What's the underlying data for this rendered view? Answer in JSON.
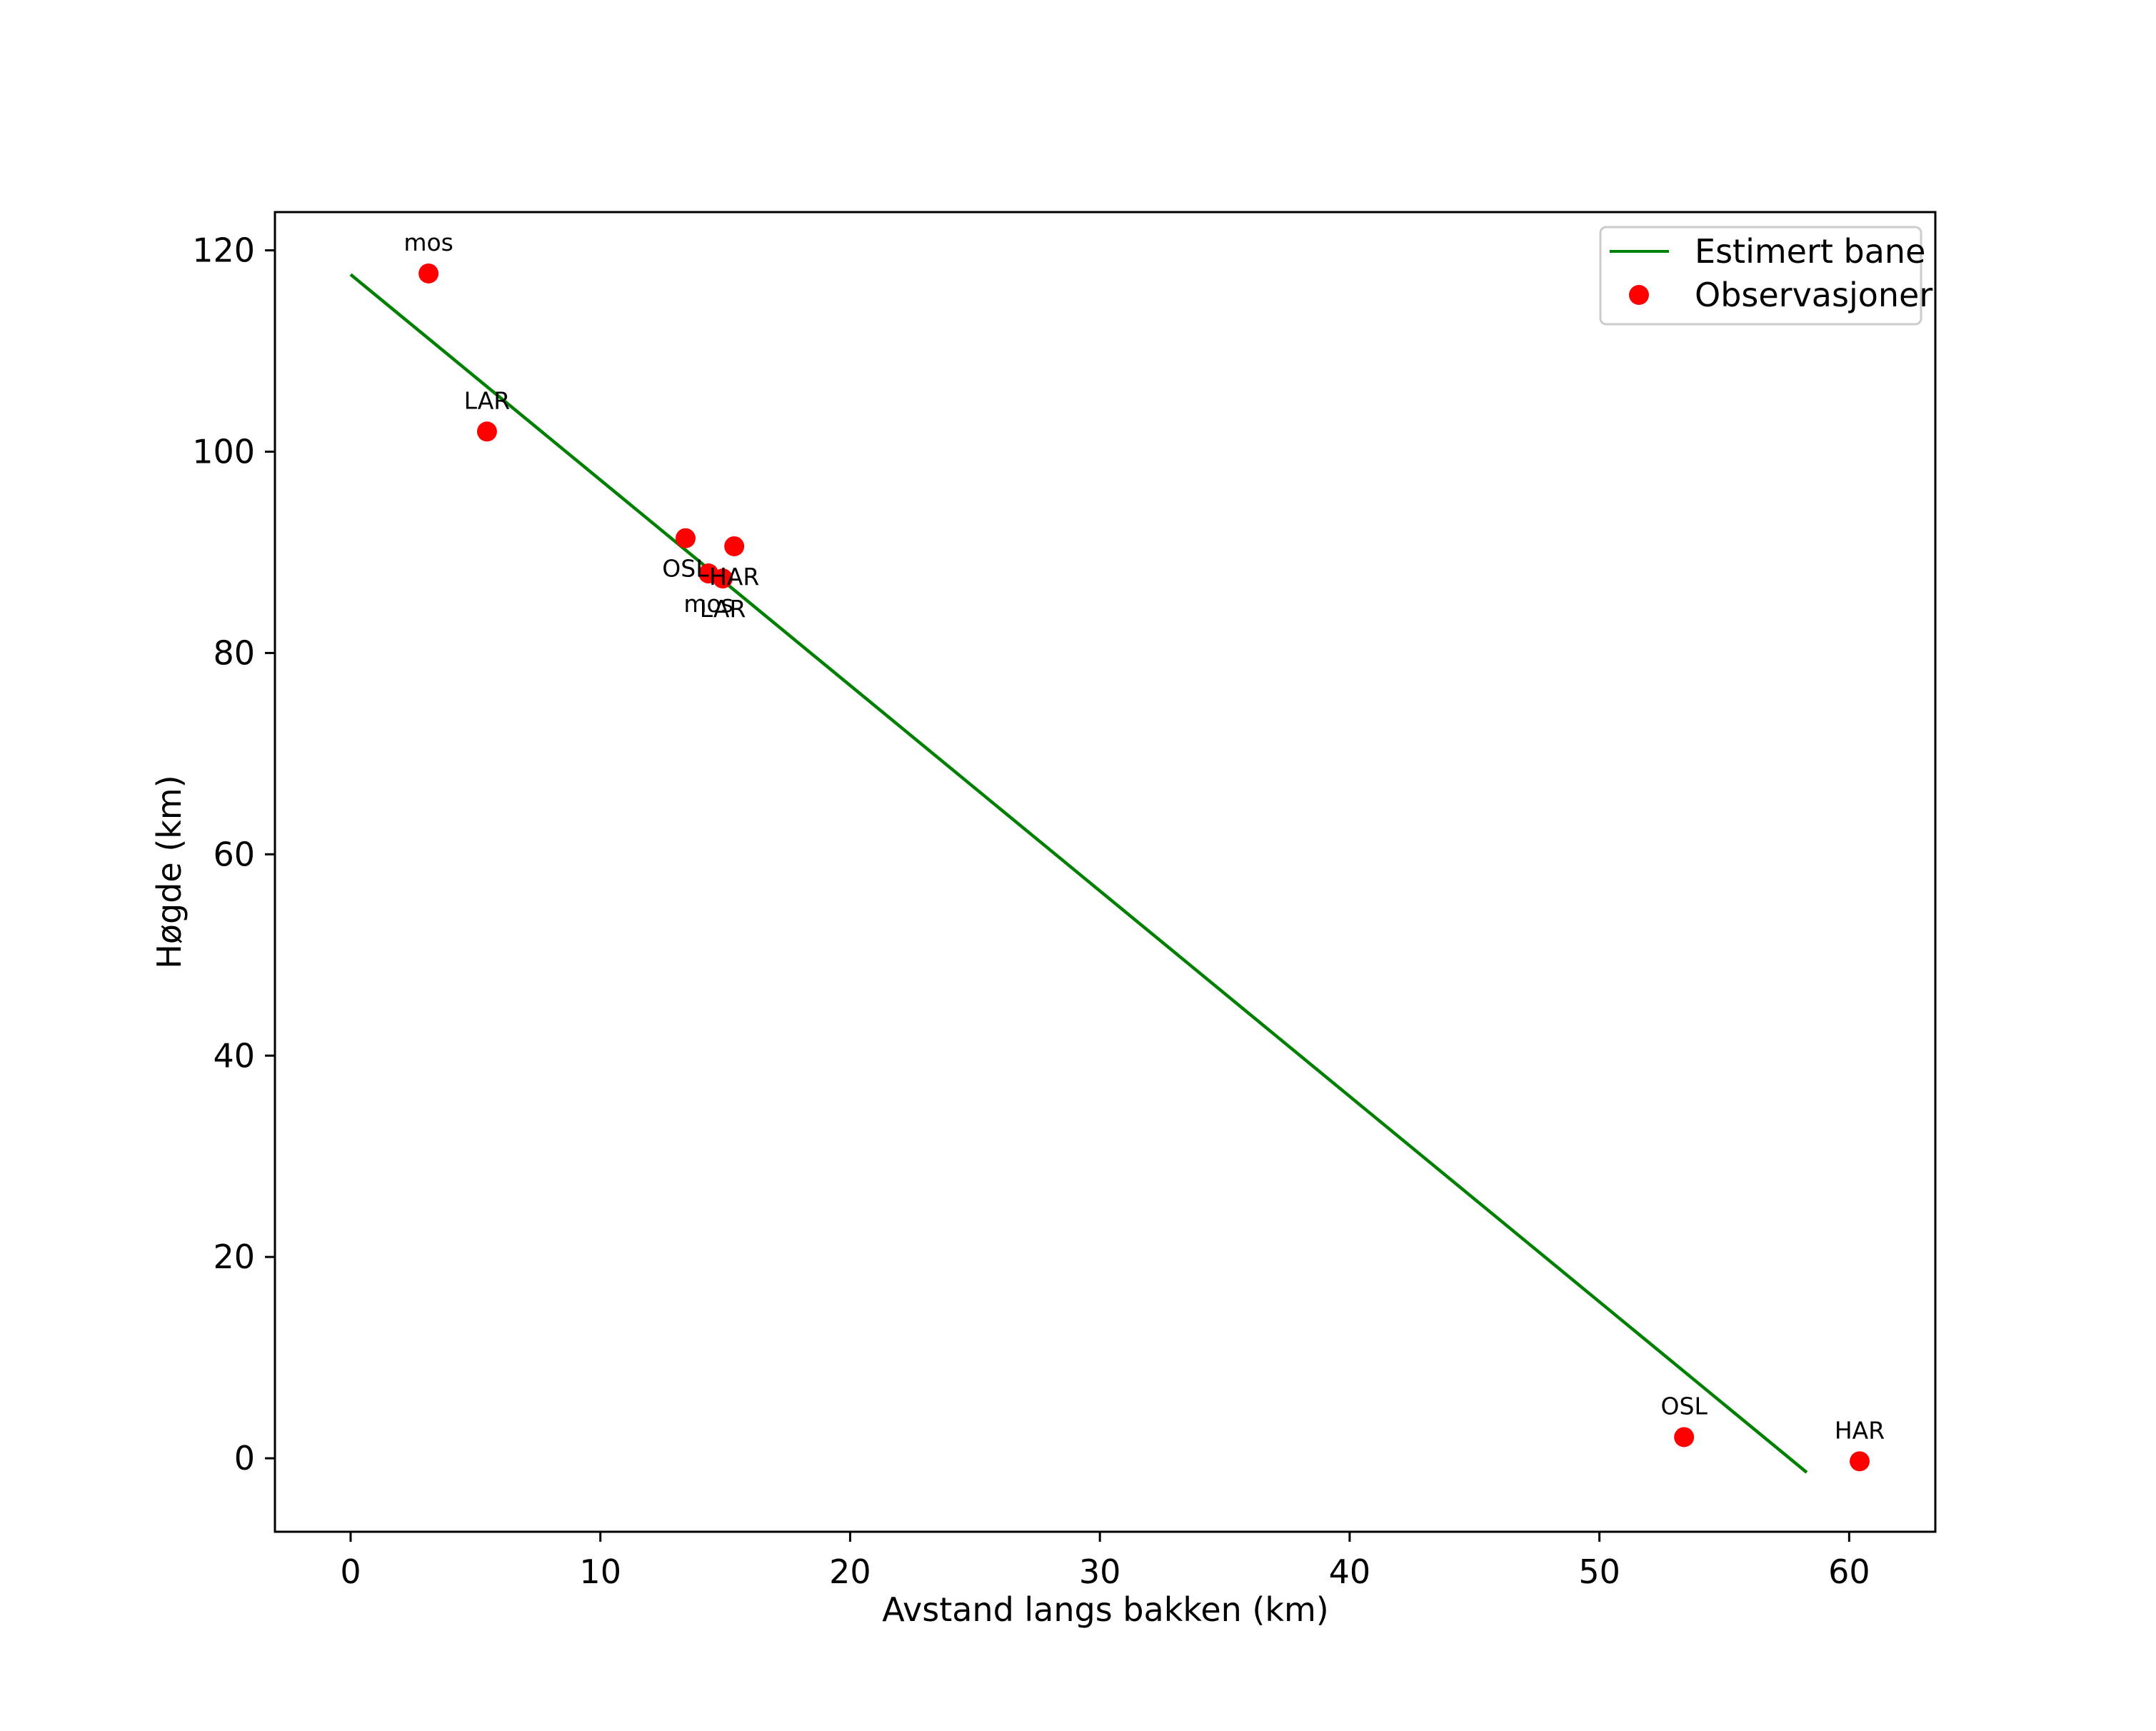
{
  "chart_data": {
    "type": "line+scatter",
    "title": "",
    "xlabel": "Avstand langs bakken (km)",
    "ylabel": "Høgde (km)",
    "xlim": [
      -3.03,
      63.45
    ],
    "ylim": [
      -7.3,
      123.8
    ],
    "grid": false,
    "legend_position": "upper right",
    "x_ticks": [
      0,
      10,
      20,
      30,
      40,
      50,
      60
    ],
    "y_ticks": [
      0,
      20,
      40,
      60,
      80,
      100,
      120
    ],
    "series": [
      {
        "name": "Estimert bane",
        "type": "line",
        "color": "#008000",
        "x": [
          0,
          58.3
        ],
        "y": [
          117.6,
          -1.4
        ]
      },
      {
        "name": "Observasjoner",
        "type": "scatter",
        "color": "#ff0000",
        "points": [
          {
            "label": "mos",
            "x": 3.12,
            "y": 117.7,
            "label_pos": "above"
          },
          {
            "label": "LAR",
            "x": 5.46,
            "y": 102.0,
            "label_pos": "above"
          },
          {
            "label": "OSL",
            "x": 13.41,
            "y": 91.4,
            "label_pos": "below"
          },
          {
            "label": "HAR",
            "x": 15.36,
            "y": 90.6,
            "label_pos": "below"
          },
          {
            "label": "mos",
            "x": 14.33,
            "y": 87.9,
            "label_pos": "below"
          },
          {
            "label": "LAR",
            "x": 14.9,
            "y": 87.4,
            "label_pos": "below"
          },
          {
            "label": "OSL",
            "x": 53.39,
            "y": 2.1,
            "label_pos": "above"
          },
          {
            "label": "HAR",
            "x": 60.42,
            "y": -0.3,
            "label_pos": "above"
          }
        ]
      }
    ]
  },
  "legend": {
    "items": [
      {
        "label": "Estimert bane",
        "marker": "line",
        "color": "#008000"
      },
      {
        "label": "Observasjoner",
        "marker": "dot",
        "color": "#ff0000"
      }
    ]
  }
}
